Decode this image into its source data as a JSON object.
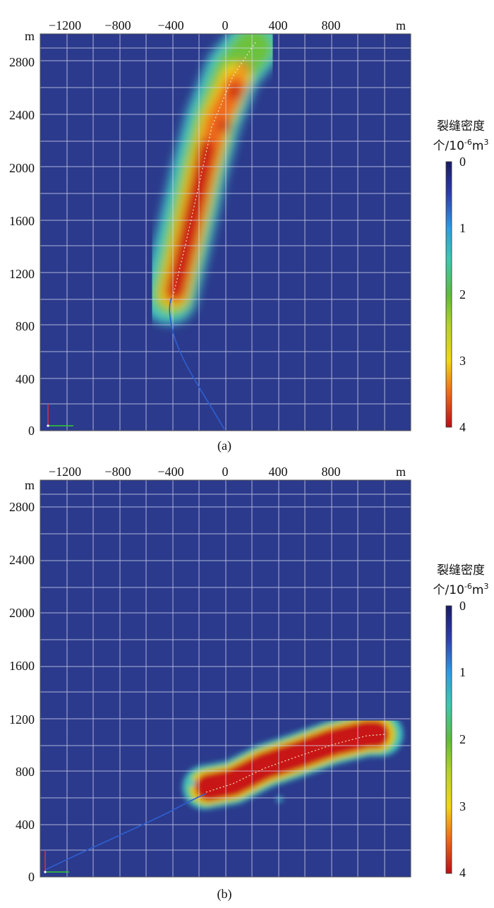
{
  "figure": {
    "panels": [
      {
        "caption": "(a)",
        "x_unit": "m",
        "y_unit": "m",
        "x_ticks": [
          "−1200",
          "−800",
          "−400",
          "0",
          "400",
          "800"
        ],
        "y_ticks": [
          "2800",
          "2400",
          "2000",
          "1600",
          "1200",
          "800",
          "400",
          "0"
        ]
      },
      {
        "caption": "(b)",
        "x_unit": "m",
        "y_unit": "m",
        "x_ticks": [
          "−1200",
          "−800",
          "−400",
          "0",
          "400",
          "800"
        ],
        "y_ticks": [
          "2800",
          "2400",
          "2000",
          "1600",
          "1200",
          "800",
          "400",
          "0"
        ]
      }
    ],
    "colorbar": {
      "title_line1": "裂缝密度",
      "title_line2_prefix": "个/10",
      "title_line2_exp": "-6",
      "title_line2_unit": "m",
      "title_line2_unit_exp": "3",
      "ticks": [
        "0",
        "1",
        "2",
        "3",
        "4"
      ]
    }
  },
  "chart_data": [
    {
      "type": "heatmap",
      "title": "",
      "caption": "(a)",
      "xlabel": "m",
      "ylabel": "m",
      "xlim": [
        -1400,
        1400
      ],
      "ylim": [
        0,
        2950
      ],
      "x_ticks": [
        -1200,
        -800,
        -400,
        0,
        400,
        800
      ],
      "y_ticks": [
        0,
        400,
        800,
        1200,
        1600,
        2000,
        2400,
        2800
      ],
      "grid": true,
      "background_value": 0,
      "colorbar": {
        "min": 0,
        "max": 4,
        "ticks": [
          0,
          1,
          2,
          3,
          4
        ]
      },
      "well_path": [
        [
          0,
          0
        ],
        [
          -200,
          400
        ],
        [
          -400,
          800
        ],
        [
          -350,
          1000
        ]
      ],
      "fracture_zone_axis": [
        [
          -380,
          1030
        ],
        [
          -280,
          1300
        ],
        [
          -180,
          1700
        ],
        [
          -80,
          2100
        ],
        [
          60,
          2500
        ],
        [
          200,
          2850
        ]
      ],
      "density_peak": 4,
      "density_profile_along_zone": [
        {
          "y": 1050,
          "value": 4.0
        },
        {
          "y": 1300,
          "value": 4.0
        },
        {
          "y": 1600,
          "value": 4.0
        },
        {
          "y": 1900,
          "value": 3.8
        },
        {
          "y": 2200,
          "value": 3.6
        },
        {
          "y": 2550,
          "value": 3.6
        },
        {
          "y": 2750,
          "value": 3.0
        },
        {
          "y": 2900,
          "value": 2.2
        }
      ]
    },
    {
      "type": "heatmap",
      "title": "",
      "caption": "(b)",
      "xlabel": "m",
      "ylabel": "m",
      "xlim": [
        -1400,
        1400
      ],
      "ylim": [
        0,
        2950
      ],
      "x_ticks": [
        -1200,
        -800,
        -400,
        0,
        400,
        800
      ],
      "y_ticks": [
        0,
        400,
        800,
        1200,
        1600,
        2000,
        2400,
        2800
      ],
      "grid": true,
      "background_value": 0,
      "colorbar": {
        "min": 0,
        "max": 4,
        "ticks": [
          0,
          1,
          2,
          3,
          4
        ]
      },
      "well_path": [
        [
          -1350,
          50
        ],
        [
          -800,
          250
        ],
        [
          -350,
          500
        ],
        [
          -150,
          600
        ]
      ],
      "fracture_zone_axis": [
        [
          -150,
          620
        ],
        [
          100,
          680
        ],
        [
          400,
          780
        ],
        [
          800,
          900
        ],
        [
          1180,
          1030
        ]
      ],
      "density_peak": 4,
      "density_profile_along_zone": [
        {
          "x": -100,
          "value": 4.0
        },
        {
          "x": 200,
          "value": 4.0
        },
        {
          "x": 500,
          "value": 4.0
        },
        {
          "x": 800,
          "value": 4.0
        },
        {
          "x": 1150,
          "value": 4.0
        }
      ]
    }
  ]
}
